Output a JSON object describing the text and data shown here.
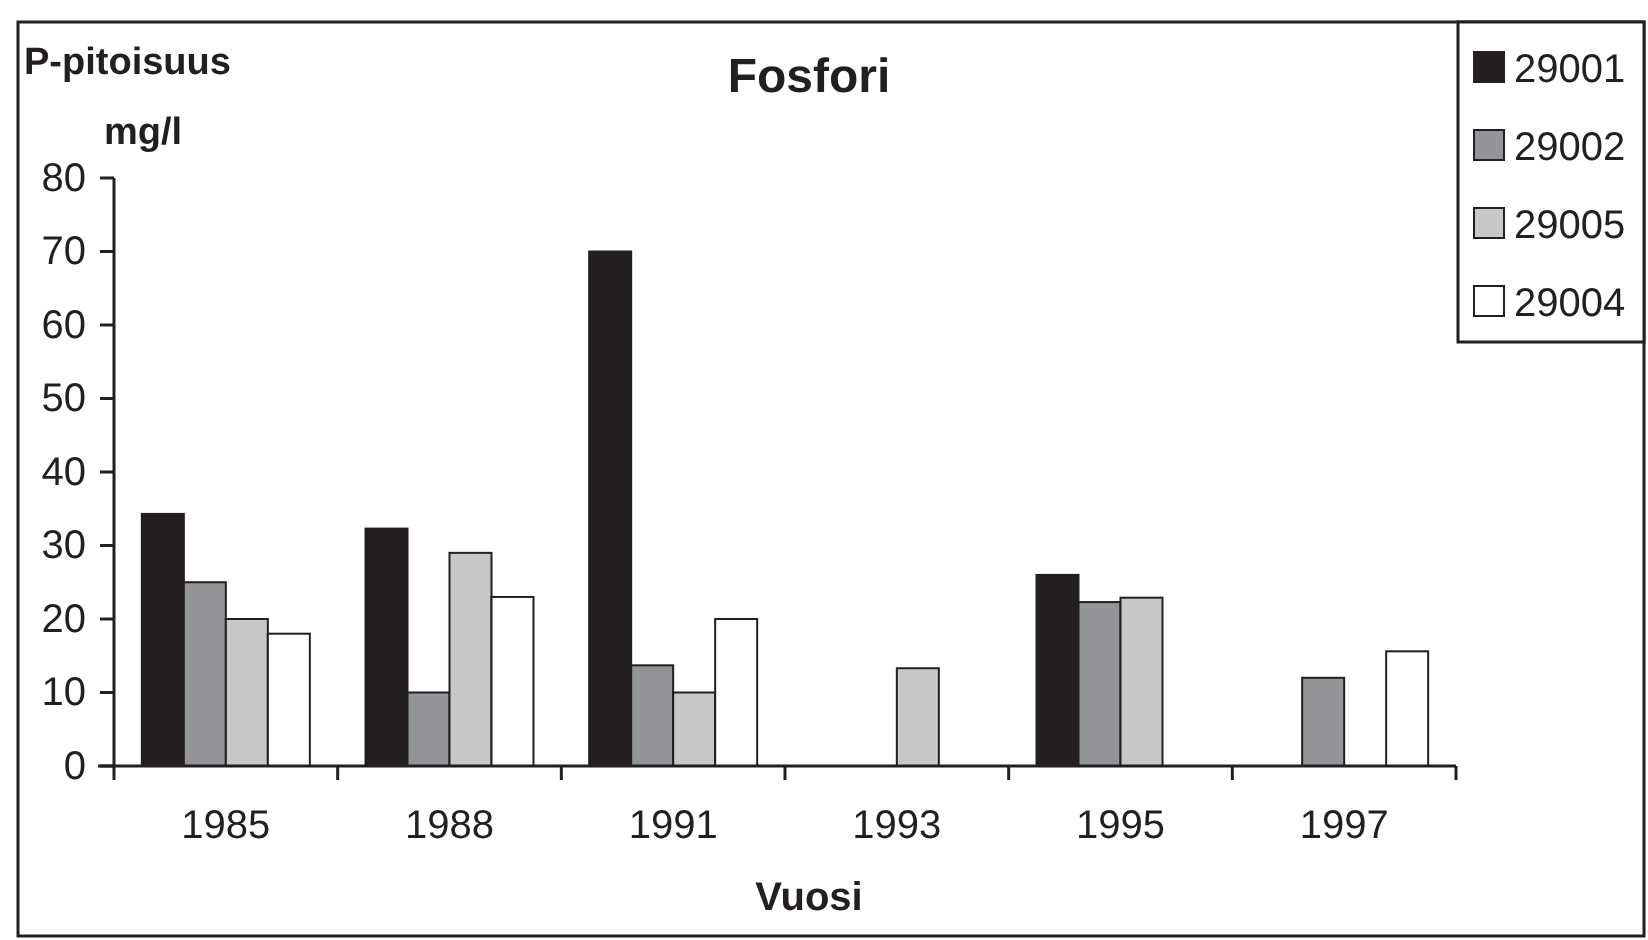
{
  "chart_data": {
    "type": "bar",
    "title": "Fosfori",
    "ylabel": "P-pitoisuus mg/l",
    "xlabel": "Vuosi",
    "categories": [
      "1985",
      "1988",
      "1991",
      "1993",
      "1995",
      "1997"
    ],
    "series": [
      {
        "name": "29001",
        "color": "#231f20",
        "values": [
          34.3,
          32.3,
          70,
          null,
          26,
          null
        ]
      },
      {
        "name": "29002",
        "color": "#929497",
        "values": [
          25,
          10,
          13.7,
          null,
          22.3,
          12
        ]
      },
      {
        "name": "29005",
        "color": "#c7c8ca",
        "values": [
          20,
          29,
          10,
          13.3,
          22.9,
          null
        ]
      },
      {
        "name": "29004",
        "color": "#ffffff",
        "values": [
          18,
          23,
          20,
          null,
          null,
          15.6
        ]
      }
    ],
    "ylim": [
      0,
      80
    ],
    "yticks": [
      0,
      10,
      20,
      30,
      40,
      50,
      60,
      70,
      80
    ],
    "grid": false,
    "legend": "top right"
  }
}
